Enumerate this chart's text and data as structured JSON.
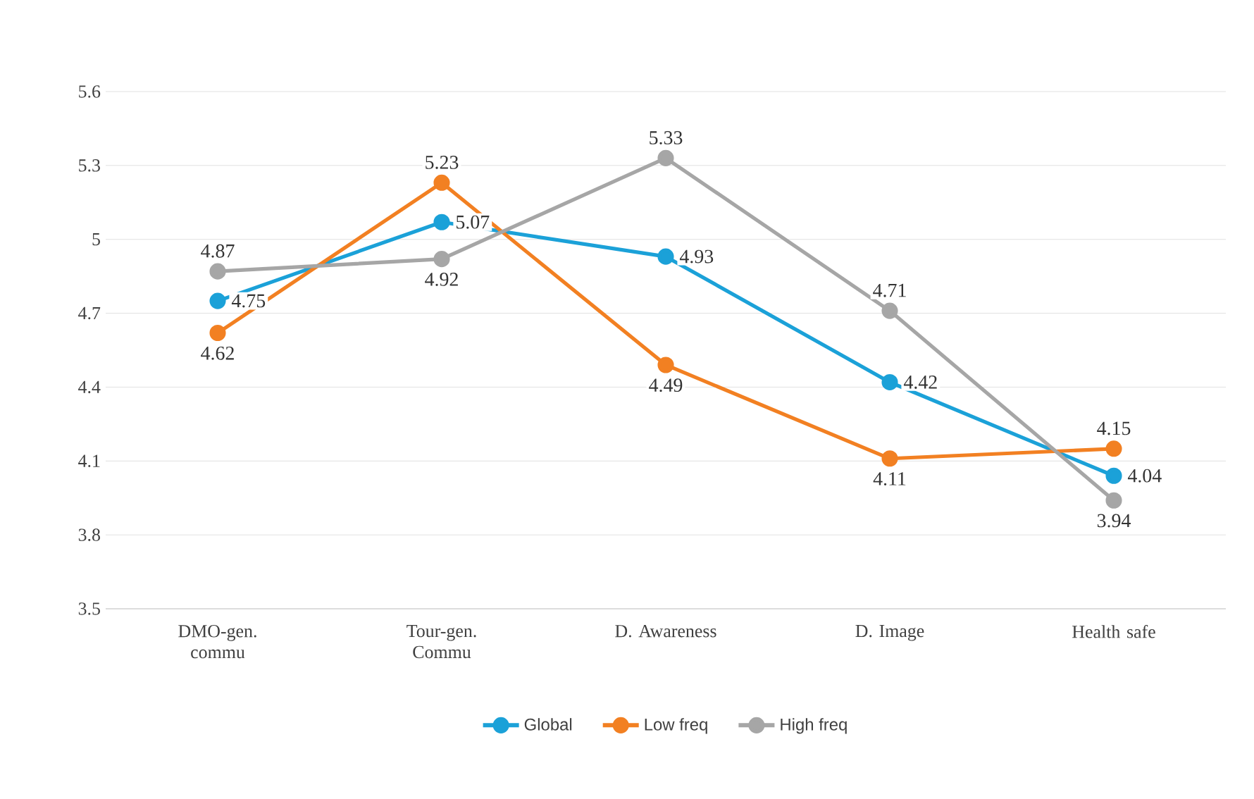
{
  "chart_data": {
    "type": "line",
    "categories": [
      "DMO-gen. commu",
      "Tour-gen. Commu",
      "D. Awareness",
      "D. Image",
      "Health safe"
    ],
    "series": [
      {
        "name": "Global",
        "color": "#1ba1d8",
        "values": [
          4.75,
          5.07,
          4.93,
          4.42,
          4.04
        ]
      },
      {
        "name": "Low freq",
        "color": "#f28022",
        "values": [
          4.62,
          5.23,
          4.49,
          4.11,
          4.15
        ]
      },
      {
        "name": "High freq",
        "color": "#a6a6a6",
        "values": [
          4.87,
          4.92,
          5.33,
          4.71,
          3.94
        ]
      }
    ],
    "ylim": [
      3.5,
      5.6
    ],
    "yticks": [
      3.5,
      3.8,
      4.1,
      4.4,
      4.7,
      5,
      5.3,
      5.6
    ],
    "grid": "y",
    "legend": "bottom",
    "marker": "circle",
    "line_style": "solid",
    "data_labels": true
  }
}
